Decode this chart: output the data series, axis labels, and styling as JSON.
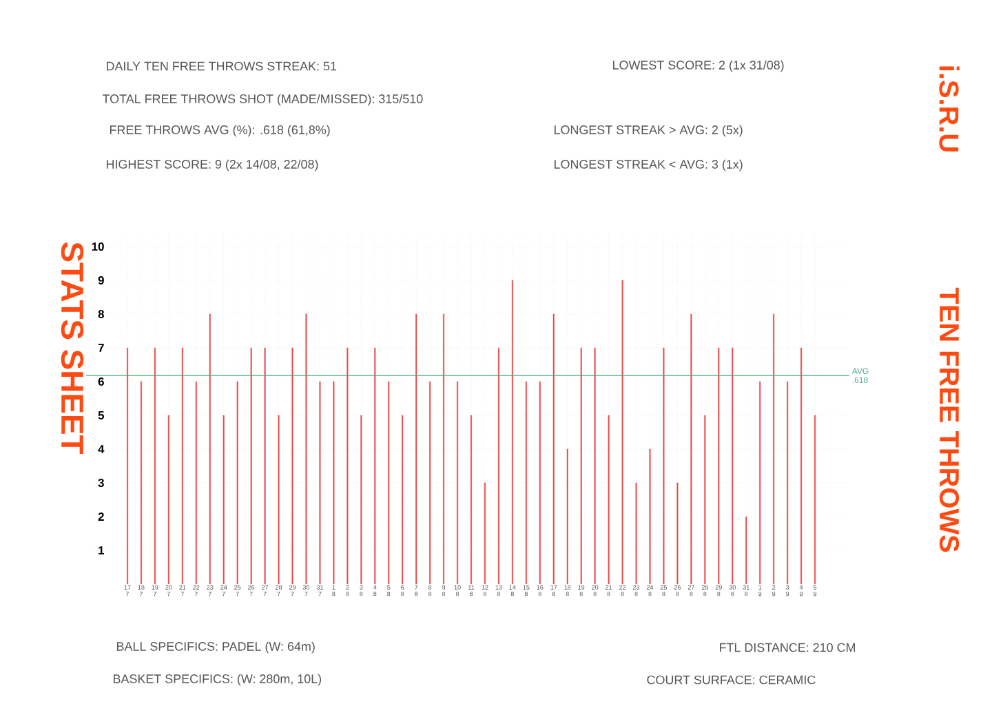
{
  "chart_data": {
    "type": "bar",
    "title": "STATS SHEET",
    "subtitle": "TEN FREE THROWS",
    "categories": [
      "17 7",
      "18 7",
      "19 7",
      "20 7",
      "21 7",
      "22 7",
      "23 7",
      "24 7",
      "25 7",
      "26 7",
      "27 7",
      "28 7",
      "29 7",
      "30 7",
      "31 7",
      "1 8",
      "2 8",
      "3 8",
      "4 8",
      "5 8",
      "6 8",
      "7 8",
      "8 8",
      "9 8",
      "10 8",
      "11 8",
      "12 8",
      "13 8",
      "14 8",
      "15 8",
      "16 8",
      "17 8",
      "18 8",
      "19 8",
      "20 8",
      "21 8",
      "22 8",
      "23 8",
      "24 8",
      "25 8",
      "26 8",
      "27 8",
      "28 8",
      "29 8",
      "30 8",
      "31 8",
      "1 9",
      "2 9",
      "3 9",
      "4 9",
      "5 9"
    ],
    "values": [
      7,
      6,
      7,
      5,
      7,
      6,
      8,
      5,
      6,
      7,
      7,
      5,
      7,
      8,
      6,
      6,
      7,
      5,
      7,
      6,
      5,
      8,
      6,
      8,
      6,
      5,
      3,
      7,
      9,
      6,
      6,
      8,
      4,
      7,
      7,
      5,
      9,
      3,
      4,
      7,
      3,
      8,
      5,
      7,
      7,
      2,
      6,
      8,
      6,
      7,
      5
    ],
    "color": "#e84a4a",
    "ylim": [
      0,
      10.4
    ],
    "yticks": [
      1,
      2,
      3,
      4,
      5,
      6,
      7,
      8,
      9,
      10
    ],
    "grid": true,
    "ref_lines": [
      {
        "axis": "y",
        "value": 6.18,
        "label": "AVG .618",
        "color": "#4daa80"
      }
    ],
    "annotations": [
      "i.S.R.U",
      "DAILY TEN FREE THROWS STREAK: 51",
      "LOWEST SCORE: 2 (1x 31/08)",
      "TOTAL FREE THROWS SHOT (MADE/MISSED): 315/510",
      "FREE THROWS AVG (%): .618 (61,8%)",
      "LONGEST STREAK > AVG: 2 (5x)",
      "HIGHEST SCORE: 9 (2x 14/08, 22/08)",
      "LONGEST STREAK < AVG: 3 (1x)",
      "BALL SPECIFICS: PADEL (W: 64m)",
      "FTL DISTANCE: 210 CM",
      "BASKET SPECIFICS: (W: 280m, 10L)",
      "COURT SURFACE: CERAMIC"
    ]
  }
}
